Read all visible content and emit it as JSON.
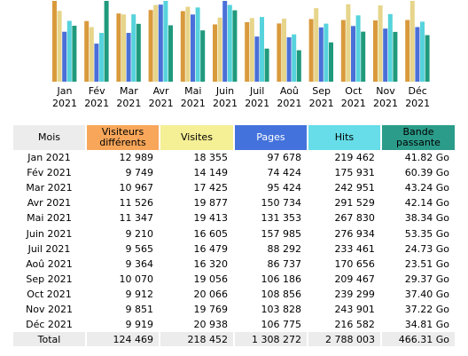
{
  "colors": {
    "visiteurs": "#d99a3c",
    "visites": "#e6d58a",
    "pages": "#4a6fd8",
    "hits": "#56d3dc",
    "bande": "#1f9a7c"
  },
  "chart_data": {
    "type": "bar",
    "categories": [
      [
        "Jan",
        "2021"
      ],
      [
        "Fév",
        "2021"
      ],
      [
        "Mar",
        "2021"
      ],
      [
        "Avr",
        "2021"
      ],
      [
        "Mai",
        "2021"
      ],
      [
        "Juin",
        "2021"
      ],
      [
        "Juil",
        "2021"
      ],
      [
        "Aoû",
        "2021"
      ],
      [
        "Sep",
        "2021"
      ],
      [
        "Oct",
        "2021"
      ],
      [
        "Nov",
        "2021"
      ],
      [
        "Déc",
        "2021"
      ]
    ],
    "series": [
      {
        "name": "Visiteurs différents",
        "values": [
          12989,
          9749,
          10967,
          11526,
          11347,
          9210,
          9565,
          9364,
          10070,
          9912,
          9851,
          9919
        ]
      },
      {
        "name": "Visites",
        "values": [
          18355,
          14149,
          17425,
          19877,
          19413,
          16605,
          16479,
          16320,
          19056,
          20066,
          19769,
          20938
        ]
      },
      {
        "name": "Pages",
        "values": [
          97678,
          74424,
          95424,
          150734,
          131353,
          157985,
          88292,
          86737,
          106186,
          108856,
          103828,
          106775
        ]
      },
      {
        "name": "Hits",
        "values": [
          219462,
          175931,
          242951,
          291529,
          267830,
          276934,
          233461,
          170656,
          209467,
          239299,
          243901,
          216582
        ]
      },
      {
        "name": "Bande passante",
        "values": [
          41.82,
          60.39,
          43.24,
          42.14,
          38.34,
          53.35,
          24.73,
          23.51,
          29.37,
          37.4,
          37.22,
          34.81
        ]
      }
    ]
  },
  "table": {
    "headers": {
      "mois": "Mois",
      "visiteurs": "Visiteurs différents",
      "visites": "Visites",
      "pages": "Pages",
      "hits": "Hits",
      "bande": "Bande passante"
    },
    "rows": [
      {
        "mois": "Jan 2021",
        "visiteurs": "12 989",
        "visites": "18 355",
        "pages": "97 678",
        "hits": "219 462",
        "bande": "41.82 Go"
      },
      {
        "mois": "Fév 2021",
        "visiteurs": "9 749",
        "visites": "14 149",
        "pages": "74 424",
        "hits": "175 931",
        "bande": "60.39 Go"
      },
      {
        "mois": "Mar 2021",
        "visiteurs": "10 967",
        "visites": "17 425",
        "pages": "95 424",
        "hits": "242 951",
        "bande": "43.24 Go"
      },
      {
        "mois": "Avr 2021",
        "visiteurs": "11 526",
        "visites": "19 877",
        "pages": "150 734",
        "hits": "291 529",
        "bande": "42.14 Go"
      },
      {
        "mois": "Mai 2021",
        "visiteurs": "11 347",
        "visites": "19 413",
        "pages": "131 353",
        "hits": "267 830",
        "bande": "38.34 Go"
      },
      {
        "mois": "Juin 2021",
        "visiteurs": "9 210",
        "visites": "16 605",
        "pages": "157 985",
        "hits": "276 934",
        "bande": "53.35 Go"
      },
      {
        "mois": "Juil 2021",
        "visiteurs": "9 565",
        "visites": "16 479",
        "pages": "88 292",
        "hits": "233 461",
        "bande": "24.73 Go"
      },
      {
        "mois": "Aoû 2021",
        "visiteurs": "9 364",
        "visites": "16 320",
        "pages": "86 737",
        "hits": "170 656",
        "bande": "23.51 Go"
      },
      {
        "mois": "Sep 2021",
        "visiteurs": "10 070",
        "visites": "19 056",
        "pages": "106 186",
        "hits": "209 467",
        "bande": "29.37 Go"
      },
      {
        "mois": "Oct 2021",
        "visiteurs": "9 912",
        "visites": "20 066",
        "pages": "108 856",
        "hits": "239 299",
        "bande": "37.40 Go"
      },
      {
        "mois": "Nov 2021",
        "visiteurs": "9 851",
        "visites": "19 769",
        "pages": "103 828",
        "hits": "243 901",
        "bande": "37.22 Go"
      },
      {
        "mois": "Déc 2021",
        "visiteurs": "9 919",
        "visites": "20 938",
        "pages": "106 775",
        "hits": "216 582",
        "bande": "34.81 Go"
      }
    ],
    "total": {
      "mois": "Total",
      "visiteurs": "124 469",
      "visites": "218 452",
      "pages": "1 308 272",
      "hits": "2 788 003",
      "bande": "466.31 Go"
    }
  }
}
